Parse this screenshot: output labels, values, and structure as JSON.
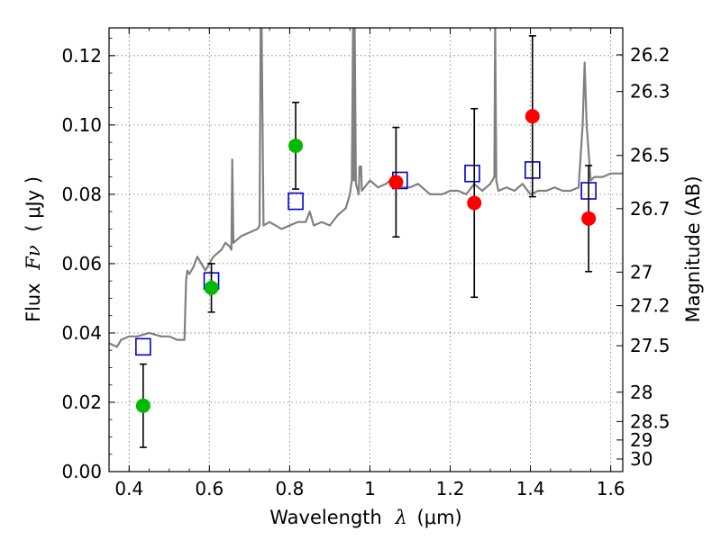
{
  "chart_data": {
    "type": "scatter",
    "xlabel": "Wavelength",
    "xlabel_symbol": "λ",
    "xlabel_unit": "(μm)",
    "ylabel": "Flux",
    "ylabel_symbol": "Fν",
    "ylabel_unit": "( μJy )",
    "y2label": "Magnitude (AB)",
    "xlim": [
      0.35,
      1.63
    ],
    "ylim": [
      0.0,
      0.128
    ],
    "grid": true,
    "x_ticks": [
      0.4,
      0.6,
      0.8,
      1.0,
      1.2,
      1.4,
      1.6
    ],
    "x_tick_labels": [
      "0.4",
      "0.6",
      "0.8",
      "1",
      "1.2",
      "1.4",
      "1.6"
    ],
    "y_ticks": [
      0.0,
      0.02,
      0.04,
      0.06,
      0.08,
      0.1,
      0.12
    ],
    "y_tick_labels": [
      "0.00",
      "0.02",
      "0.04",
      "0.06",
      "0.08",
      "0.10",
      "0.12"
    ],
    "y2_ticks": [
      26.2,
      26.3,
      26.5,
      26.7,
      27,
      27.2,
      27.5,
      28,
      28.5,
      29,
      30
    ],
    "y2_tick_labels": [
      "26.2",
      "26.3",
      "26.5",
      "26.7",
      "27",
      "27.2",
      "27.5",
      "28",
      "28.5",
      "29",
      "30"
    ],
    "colors": {
      "template": "#808080",
      "model_box": "#0000cc",
      "obs_optical": "#00bb00",
      "obs_nir": "#ff0000",
      "errorbar": "#000000"
    },
    "series": [
      {
        "kind": "line",
        "color_key": "template",
        "x": [
          0.35,
          0.37,
          0.38,
          0.4,
          0.42,
          0.45,
          0.48,
          0.5,
          0.52,
          0.535,
          0.538,
          0.54,
          0.542,
          0.545,
          0.55,
          0.56,
          0.57,
          0.58,
          0.59,
          0.6,
          0.61,
          0.62,
          0.63,
          0.64,
          0.65,
          0.655,
          0.657,
          0.66,
          0.67,
          0.68,
          0.7,
          0.72,
          0.725,
          0.728,
          0.73,
          0.735,
          0.75,
          0.78,
          0.8,
          0.82,
          0.84,
          0.85,
          0.86,
          0.88,
          0.9,
          0.92,
          0.94,
          0.95,
          0.955,
          0.958,
          0.96,
          0.962,
          0.965,
          0.97,
          0.972,
          0.974,
          0.978,
          0.98,
          1.0,
          1.02,
          1.04,
          1.06,
          1.07,
          1.08,
          1.1,
          1.12,
          1.15,
          1.18,
          1.2,
          1.22,
          1.24,
          1.26,
          1.27,
          1.28,
          1.3,
          1.31,
          1.312,
          1.315,
          1.32,
          1.34,
          1.36,
          1.38,
          1.4,
          1.42,
          1.44,
          1.46,
          1.48,
          1.5,
          1.52,
          1.53,
          1.535,
          1.54,
          1.55,
          1.56,
          1.58,
          1.6,
          1.63
        ],
        "y": [
          0.037,
          0.036,
          0.038,
          0.039,
          0.039,
          0.04,
          0.039,
          0.039,
          0.038,
          0.038,
          0.038,
          0.047,
          0.055,
          0.058,
          0.057,
          0.059,
          0.062,
          0.06,
          0.058,
          0.06,
          0.062,
          0.063,
          0.064,
          0.066,
          0.065,
          0.064,
          0.09,
          0.066,
          0.067,
          0.068,
          0.069,
          0.07,
          0.071,
          0.13,
          0.13,
          0.071,
          0.072,
          0.07,
          0.071,
          0.072,
          0.072,
          0.075,
          0.071,
          0.072,
          0.071,
          0.074,
          0.076,
          0.08,
          0.084,
          0.13,
          0.084,
          0.13,
          0.083,
          0.081,
          0.08,
          0.088,
          0.088,
          0.081,
          0.084,
          0.082,
          0.083,
          0.085,
          0.084,
          0.082,
          0.082,
          0.083,
          0.08,
          0.08,
          0.081,
          0.081,
          0.08,
          0.083,
          0.082,
          0.081,
          0.083,
          0.085,
          0.13,
          0.084,
          0.081,
          0.082,
          0.081,
          0.083,
          0.08,
          0.081,
          0.081,
          0.082,
          0.081,
          0.081,
          0.082,
          0.1,
          0.118,
          0.1,
          0.084,
          0.085,
          0.085,
          0.086,
          0.086
        ]
      },
      {
        "kind": "box",
        "color_key": "model_box",
        "x": [
          0.435,
          0.605,
          0.815,
          1.075,
          1.255,
          1.405,
          1.545
        ],
        "y": [
          0.036,
          0.055,
          0.078,
          0.084,
          0.086,
          0.087,
          0.081
        ]
      },
      {
        "kind": "points",
        "color_key": "obs_optical",
        "x": [
          0.435,
          0.605,
          0.815
        ],
        "y": [
          0.019,
          0.053,
          0.094
        ],
        "err": [
          0.012,
          0.007,
          0.0125
        ]
      },
      {
        "kind": "points",
        "color_key": "obs_nir",
        "x": [
          1.065,
          1.26,
          1.405,
          1.545
        ],
        "y": [
          0.0835,
          0.0775,
          0.1025,
          0.073
        ],
        "err": [
          0.0158,
          0.0272,
          0.0232,
          0.0153
        ]
      }
    ]
  }
}
